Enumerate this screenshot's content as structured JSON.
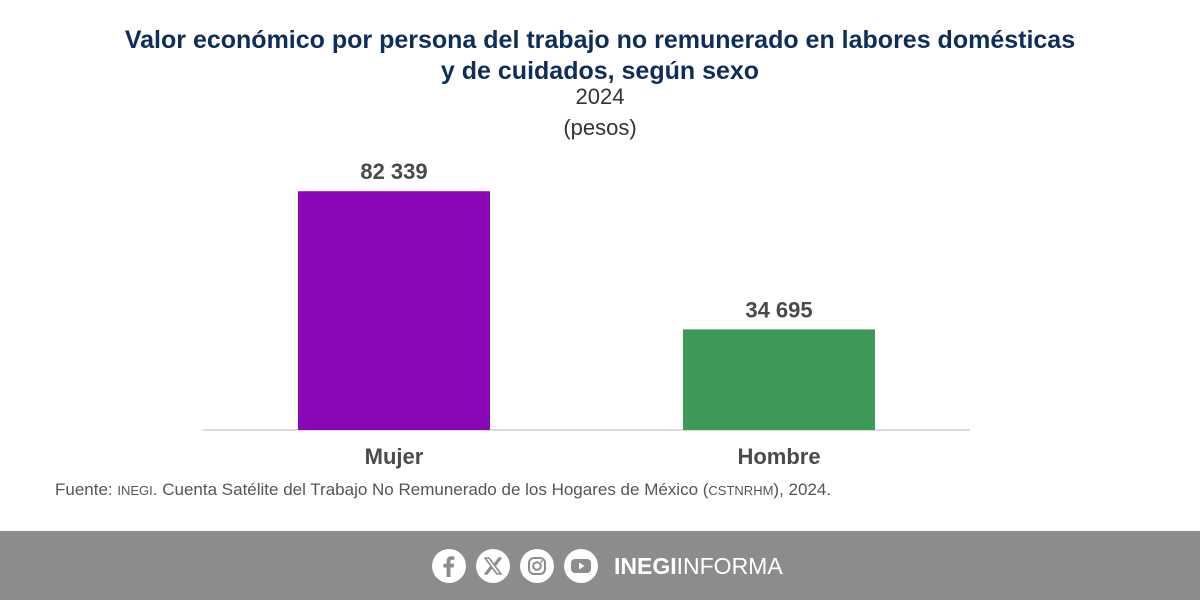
{
  "chart_data": {
    "type": "bar",
    "title": "Valor económico por persona del trabajo no remunerado en labores domésticas y de cuidados, según sexo",
    "title_lines": [
      "Valor económico por persona del trabajo no remunerado en labores domésticas",
      "y de cuidados, según sexo"
    ],
    "subtitle": "2024",
    "unit": "(pesos)",
    "categories": [
      "Mujer",
      "Hombre"
    ],
    "values": [
      82339,
      34695
    ],
    "value_labels": [
      "82 339",
      "34 695"
    ],
    "colors": [
      "#8a07b5",
      "#3e9a57"
    ],
    "ylim": [
      0,
      100000
    ],
    "grid": false,
    "legend": "none"
  },
  "source": {
    "prefix": "Fuente: ",
    "org": "INEGI",
    "text": ". Cuenta Satélite del Trabajo No Remunerado de los Hogares de México (",
    "abbr": "CSTNRHM",
    "suffix": "), 2024."
  },
  "footer": {
    "brand_bold": "INEGI",
    "brand_light": "INFORMA",
    "icons": [
      "facebook-icon",
      "x-icon",
      "instagram-icon",
      "youtube-icon"
    ],
    "background": "#8c8c8c"
  }
}
